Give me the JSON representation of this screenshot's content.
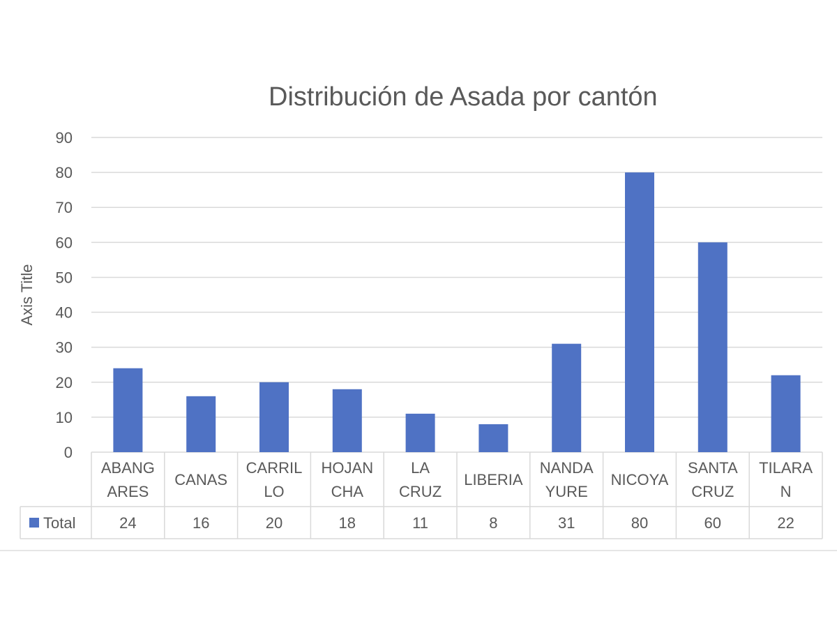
{
  "chart_data": {
    "type": "bar",
    "title": "Distribución de Asada por cantón",
    "ylabel": "Axis Title",
    "xlabel": "",
    "ylim": [
      0,
      90
    ],
    "yticks": [
      0,
      10,
      20,
      30,
      40,
      50,
      60,
      70,
      80,
      90
    ],
    "grid": true,
    "categories": [
      [
        "ABANG",
        "ARES"
      ],
      [
        "CANAS"
      ],
      [
        "CARRIL",
        "LO"
      ],
      [
        "HOJAN",
        "CHA"
      ],
      [
        "LA",
        "CRUZ"
      ],
      [
        "LIBERIA"
      ],
      [
        "NANDA",
        "YURE"
      ],
      [
        "NICOYA"
      ],
      [
        "SANTA",
        "CRUZ"
      ],
      [
        "TILARA",
        "N"
      ]
    ],
    "series": [
      {
        "name": "Total",
        "values": [
          24,
          16,
          20,
          18,
          11,
          8,
          31,
          80,
          60,
          22
        ]
      }
    ],
    "data_table": true,
    "color": "#4f72c4"
  }
}
